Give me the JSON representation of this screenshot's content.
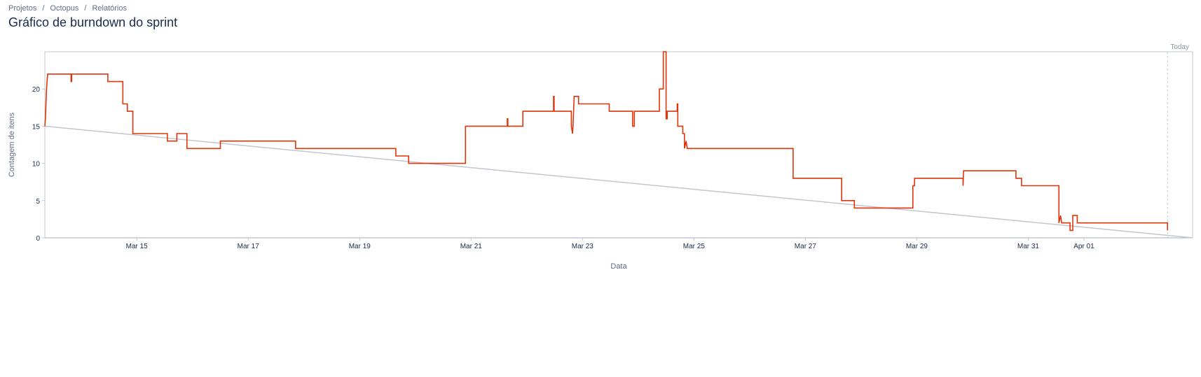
{
  "breadcrumb": {
    "items": [
      "Projetos",
      "Octopus",
      "Relatórios"
    ],
    "separator": "/"
  },
  "page_title": "Gráfico de burndown do sprint",
  "colors": {
    "actual": "#de350b",
    "guideline": "#c1c7d0",
    "axis": "#c1c7d0",
    "text": "#5e6c84",
    "title": "#172b4d"
  },
  "chart_data": {
    "type": "line",
    "title": "",
    "xlabel": "Data",
    "ylabel": "Contagem de itens",
    "today_label": "Today",
    "ylim": [
      0,
      25
    ],
    "y_ticks": [
      0,
      5,
      10,
      15,
      20
    ],
    "xlim": [
      13.35,
      33.95
    ],
    "x_ticks": [
      {
        "x": 15,
        "label": "Mar 15"
      },
      {
        "x": 17,
        "label": "Mar 17"
      },
      {
        "x": 19,
        "label": "Mar 19"
      },
      {
        "x": 21,
        "label": "Mar 21"
      },
      {
        "x": 23,
        "label": "Mar 23"
      },
      {
        "x": 25,
        "label": "Mar 25"
      },
      {
        "x": 27,
        "label": "Mar 27"
      },
      {
        "x": 29,
        "label": "Mar 29"
      },
      {
        "x": 31,
        "label": "Mar 31"
      },
      {
        "x": 32,
        "label": "Apr 01"
      }
    ],
    "today_x": 33.5,
    "grid": false,
    "series": [
      {
        "role": "guideline",
        "points": [
          [
            13.35,
            15
          ],
          [
            33.95,
            0
          ]
        ]
      },
      {
        "role": "actual",
        "points": [
          [
            13.35,
            15
          ],
          [
            13.36,
            16
          ],
          [
            13.38,
            20
          ],
          [
            13.4,
            22
          ],
          [
            13.82,
            22
          ],
          [
            13.82,
            21
          ],
          [
            13.83,
            21
          ],
          [
            13.83,
            22
          ],
          [
            14.48,
            22
          ],
          [
            14.48,
            21
          ],
          [
            14.75,
            21
          ],
          [
            14.75,
            18
          ],
          [
            14.83,
            18
          ],
          [
            14.83,
            17
          ],
          [
            14.93,
            17
          ],
          [
            14.93,
            14
          ],
          [
            15.55,
            14
          ],
          [
            15.55,
            13
          ],
          [
            15.72,
            13
          ],
          [
            15.72,
            14
          ],
          [
            15.9,
            14
          ],
          [
            15.9,
            12
          ],
          [
            16.5,
            12
          ],
          [
            16.5,
            13
          ],
          [
            17.85,
            13
          ],
          [
            17.85,
            12
          ],
          [
            19.65,
            12
          ],
          [
            19.65,
            11
          ],
          [
            19.88,
            11
          ],
          [
            19.88,
            10
          ],
          [
            20.9,
            10
          ],
          [
            20.9,
            15
          ],
          [
            21.65,
            15
          ],
          [
            21.65,
            16
          ],
          [
            21.66,
            16
          ],
          [
            21.66,
            15
          ],
          [
            21.93,
            15
          ],
          [
            21.93,
            17
          ],
          [
            22.48,
            17
          ],
          [
            22.48,
            19
          ],
          [
            22.49,
            19
          ],
          [
            22.49,
            17
          ],
          [
            22.8,
            17
          ],
          [
            22.8,
            15
          ],
          [
            22.82,
            14
          ],
          [
            22.83,
            15
          ],
          [
            22.85,
            19
          ],
          [
            22.93,
            19
          ],
          [
            22.93,
            18
          ],
          [
            23.48,
            18
          ],
          [
            23.48,
            17
          ],
          [
            23.9,
            17
          ],
          [
            23.9,
            15
          ],
          [
            23.93,
            15
          ],
          [
            23.93,
            17
          ],
          [
            24.38,
            17
          ],
          [
            24.38,
            20
          ],
          [
            24.45,
            20
          ],
          [
            24.45,
            25
          ],
          [
            24.5,
            25
          ],
          [
            24.5,
            16
          ],
          [
            24.52,
            16
          ],
          [
            24.52,
            17
          ],
          [
            24.7,
            17
          ],
          [
            24.7,
            18
          ],
          [
            24.71,
            18
          ],
          [
            24.71,
            15
          ],
          [
            24.8,
            15
          ],
          [
            24.8,
            14
          ],
          [
            24.83,
            14
          ],
          [
            24.83,
            12
          ],
          [
            24.86,
            13
          ],
          [
            24.88,
            12
          ],
          [
            26.78,
            12
          ],
          [
            26.78,
            8
          ],
          [
            27.65,
            8
          ],
          [
            27.65,
            5
          ],
          [
            27.88,
            5
          ],
          [
            27.88,
            4
          ],
          [
            28.93,
            4
          ],
          [
            28.93,
            7
          ],
          [
            28.96,
            7
          ],
          [
            28.96,
            8
          ],
          [
            29.83,
            8
          ],
          [
            29.83,
            7
          ],
          [
            29.84,
            9
          ],
          [
            30.78,
            9
          ],
          [
            30.78,
            8
          ],
          [
            30.88,
            8
          ],
          [
            30.88,
            7
          ],
          [
            31.55,
            7
          ],
          [
            31.55,
            2
          ],
          [
            31.58,
            3
          ],
          [
            31.6,
            2
          ],
          [
            31.75,
            2
          ],
          [
            31.75,
            1
          ],
          [
            31.8,
            1
          ],
          [
            31.8,
            3
          ],
          [
            31.88,
            3
          ],
          [
            31.88,
            2
          ],
          [
            33.5,
            2
          ],
          [
            33.5,
            1
          ]
        ]
      }
    ]
  }
}
